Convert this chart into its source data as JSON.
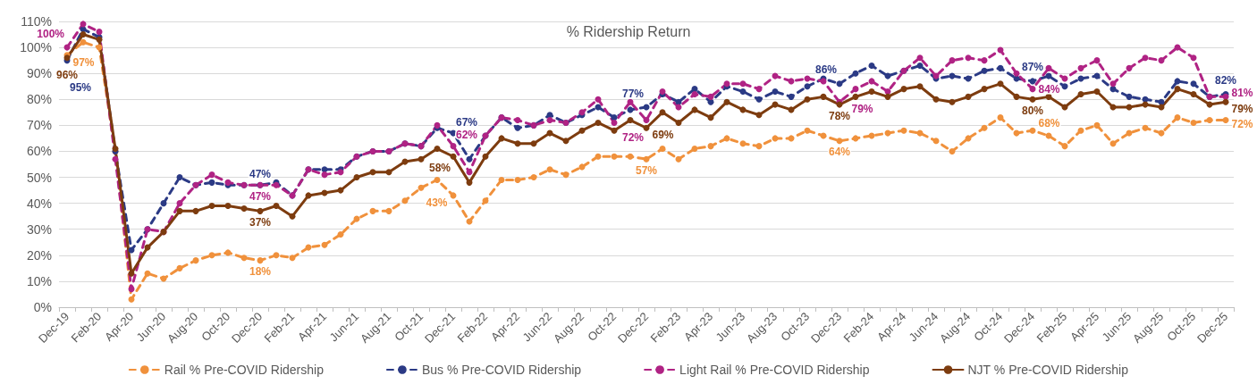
{
  "chart_data": {
    "type": "line",
    "title": "% Ridership Return",
    "categories": [
      "Dec-19",
      null,
      "Feb-20",
      null,
      "Apr-20",
      null,
      "Jun-20",
      null,
      "Aug-20",
      null,
      "Oct-20",
      null,
      "Dec-20",
      null,
      "Feb-21",
      null,
      "Apr-21",
      null,
      "Jun-21",
      null,
      "Aug-21",
      null,
      "Oct-21",
      null,
      "Dec-21",
      null,
      "Feb-22",
      null,
      "Apr-22",
      null,
      "Jun-22",
      null,
      "Aug-22",
      null,
      "Oct-22",
      null,
      "Dec-22",
      null,
      "Feb-23",
      null,
      "Apr-23",
      null,
      "Jun-23",
      null,
      "Aug-23",
      null,
      "Oct-23",
      null,
      "Dec-23",
      null,
      "Feb-24",
      null,
      "Apr-24",
      null,
      "Jun-24",
      null,
      "Aug-24",
      null,
      "Oct-24",
      null,
      "Dec-24",
      null,
      "Feb-25",
      null,
      "Apr-25",
      null,
      "Jun-25",
      null,
      "Aug-25",
      null,
      "Oct-25",
      null,
      "Dec-25"
    ],
    "series": [
      {
        "name": "Rail % Pre-COVID Ridership",
        "color": "#f0913c",
        "line_style": "dashed",
        "values": [
          97,
          102,
          100,
          60,
          3,
          13,
          11,
          15,
          18,
          20,
          21,
          19,
          18,
          20,
          19,
          23,
          24,
          28,
          34,
          37,
          37,
          41,
          46,
          49,
          43,
          33,
          41,
          49,
          49,
          50,
          53,
          51,
          54,
          58,
          58,
          58,
          57,
          61,
          57,
          61,
          62,
          65,
          63,
          62,
          65,
          65,
          68,
          66,
          64,
          65,
          66,
          67,
          68,
          67,
          64,
          60,
          65,
          69,
          73,
          67,
          68,
          66,
          62,
          68,
          70,
          63,
          67,
          69,
          67,
          73,
          71,
          72,
          72
        ],
        "value_labels": [
          "97%",
          null,
          null,
          null,
          null,
          null,
          null,
          null,
          null,
          null,
          null,
          null,
          "18%",
          null,
          null,
          null,
          null,
          null,
          null,
          null,
          null,
          null,
          null,
          null,
          "43%",
          null,
          null,
          null,
          null,
          null,
          null,
          null,
          null,
          null,
          null,
          null,
          "57%",
          null,
          null,
          null,
          null,
          null,
          null,
          null,
          null,
          null,
          null,
          null,
          "64%",
          null,
          null,
          null,
          null,
          null,
          null,
          null,
          null,
          null,
          null,
          null,
          "68%",
          null,
          null,
          null,
          null,
          null,
          null,
          null,
          null,
          null,
          null,
          null,
          "72%"
        ]
      },
      {
        "name": "Bus % Pre-COVID Ridership",
        "color": "#2b3a85",
        "line_style": "dashed",
        "values": [
          95,
          107,
          104,
          60,
          22,
          30,
          40,
          50,
          47,
          48,
          47,
          47,
          47,
          48,
          43,
          53,
          53,
          53,
          58,
          60,
          60,
          63,
          62,
          69,
          67,
          57,
          66,
          73,
          69,
          70,
          74,
          71,
          74,
          77,
          73,
          76,
          77,
          82,
          79,
          84,
          79,
          85,
          83,
          80,
          83,
          81,
          85,
          88,
          86,
          90,
          93,
          89,
          91,
          93,
          88,
          89,
          88,
          91,
          92,
          88,
          87,
          89,
          85,
          88,
          89,
          84,
          81,
          80,
          79,
          87,
          86,
          81,
          82
        ],
        "value_labels": [
          "95%",
          null,
          null,
          null,
          null,
          null,
          null,
          null,
          null,
          null,
          null,
          null,
          "47%",
          null,
          null,
          null,
          null,
          null,
          null,
          null,
          null,
          null,
          null,
          null,
          "67%",
          null,
          null,
          null,
          null,
          null,
          null,
          null,
          null,
          null,
          null,
          null,
          "77%",
          null,
          null,
          null,
          null,
          null,
          null,
          null,
          null,
          null,
          null,
          null,
          "86%",
          null,
          null,
          null,
          null,
          null,
          null,
          null,
          null,
          null,
          null,
          null,
          "87%",
          null,
          null,
          null,
          null,
          null,
          null,
          null,
          null,
          null,
          null,
          null,
          "82%"
        ]
      },
      {
        "name": "Light Rail % Pre-COVID Ridership",
        "color": "#b02384",
        "line_style": "dashed",
        "values": [
          100,
          109,
          106,
          57,
          7,
          30,
          29,
          40,
          47,
          51,
          48,
          47,
          47,
          47,
          43,
          53,
          51,
          52,
          58,
          60,
          60,
          63,
          62,
          70,
          62,
          52,
          66,
          73,
          72,
          70,
          72,
          71,
          75,
          80,
          71,
          79,
          72,
          83,
          77,
          82,
          81,
          86,
          86,
          84,
          89,
          87,
          88,
          87,
          79,
          84,
          87,
          83,
          91,
          96,
          89,
          95,
          96,
          95,
          99,
          90,
          84,
          92,
          88,
          92,
          95,
          86,
          92,
          96,
          95,
          100,
          96,
          81,
          81
        ],
        "value_labels": [
          "100%",
          null,
          null,
          null,
          null,
          null,
          null,
          null,
          null,
          null,
          null,
          null,
          "47%",
          null,
          null,
          null,
          null,
          null,
          null,
          null,
          null,
          null,
          null,
          null,
          "62%",
          null,
          null,
          null,
          null,
          null,
          null,
          null,
          null,
          null,
          null,
          null,
          "72%",
          null,
          null,
          null,
          null,
          null,
          null,
          null,
          null,
          null,
          null,
          null,
          "79%",
          null,
          null,
          null,
          null,
          null,
          null,
          null,
          null,
          null,
          null,
          null,
          "84%",
          null,
          null,
          null,
          null,
          null,
          null,
          null,
          null,
          null,
          null,
          null,
          "81%"
        ]
      },
      {
        "name": "NJT % Pre-COVID Ridership",
        "color": "#7d3c0f",
        "line_style": "solid",
        "values": [
          96,
          105,
          103,
          61,
          13,
          23,
          29,
          37,
          37,
          39,
          39,
          38,
          37,
          39,
          35,
          43,
          44,
          45,
          50,
          52,
          52,
          56,
          57,
          61,
          58,
          48,
          58,
          65,
          63,
          63,
          67,
          64,
          68,
          71,
          68,
          72,
          69,
          75,
          71,
          76,
          73,
          79,
          76,
          74,
          78,
          76,
          80,
          81,
          78,
          81,
          83,
          81,
          84,
          85,
          80,
          79,
          81,
          84,
          86,
          81,
          80,
          81,
          77,
          82,
          83,
          77,
          77,
          78,
          77,
          84,
          82,
          78,
          79
        ],
        "value_labels": [
          "96%",
          null,
          null,
          null,
          null,
          null,
          null,
          null,
          null,
          null,
          null,
          null,
          "37%",
          null,
          null,
          null,
          null,
          null,
          null,
          null,
          null,
          null,
          null,
          null,
          "58%",
          null,
          null,
          null,
          null,
          null,
          null,
          null,
          null,
          null,
          null,
          null,
          "69%",
          null,
          null,
          null,
          null,
          null,
          null,
          null,
          null,
          null,
          null,
          null,
          "78%",
          null,
          null,
          null,
          null,
          null,
          null,
          null,
          null,
          null,
          null,
          null,
          "80%",
          null,
          null,
          null,
          null,
          null,
          null,
          null,
          null,
          null,
          null,
          null,
          "79%"
        ]
      }
    ],
    "ylim": [
      0,
      110
    ],
    "yticks": [
      {
        "value": 0,
        "label": "0%"
      },
      {
        "value": 10,
        "label": "10%"
      },
      {
        "value": 20,
        "label": "20%"
      },
      {
        "value": 30,
        "label": "30%"
      },
      {
        "value": 40,
        "label": "40%"
      },
      {
        "value": 50,
        "label": "50%"
      },
      {
        "value": 60,
        "label": "60%"
      },
      {
        "value": 70,
        "label": "70%"
      },
      {
        "value": 80,
        "label": "80%"
      },
      {
        "value": 90,
        "label": "90%"
      },
      {
        "value": 100,
        "label": "100%"
      },
      {
        "value": 110,
        "label": "110%"
      }
    ],
    "grid": "y",
    "legend": "bottom",
    "marker": "circle"
  }
}
